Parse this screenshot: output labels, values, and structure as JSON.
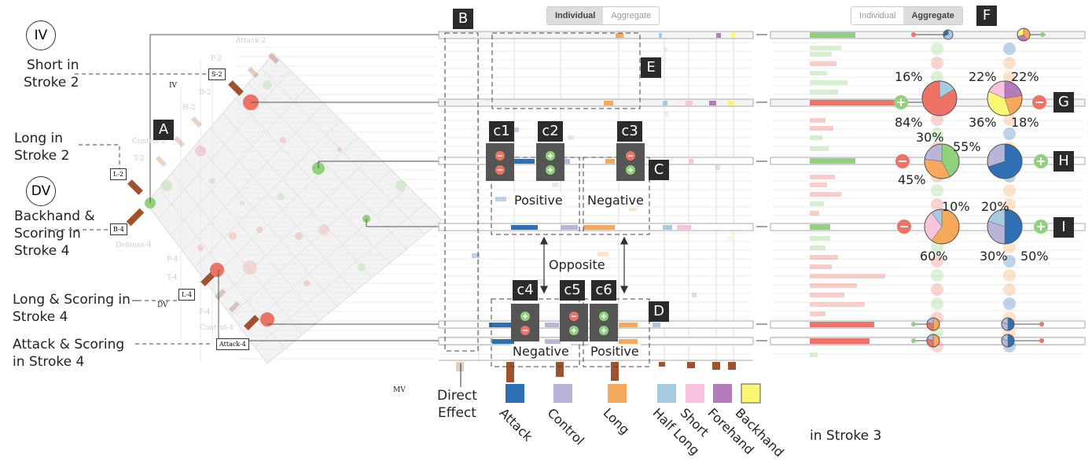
{
  "left_labels": {
    "iv_circle": "IV",
    "dv_circle": "DV",
    "short_in_stroke2": [
      "Short in",
      "Stroke 2"
    ],
    "long_in_stroke2": [
      "Long in",
      "Stroke 2"
    ],
    "backhand_scoring": [
      "Backhand &",
      "Scoring in",
      "Stroke 4"
    ],
    "long_scoring": [
      "Long & Scoring in",
      "Stroke 4"
    ],
    "attack_scoring": [
      "Attack & Scoring",
      "in Stroke 4"
    ]
  },
  "matrix": {
    "box_labels": {
      "s2": "S-2",
      "l2": "L-2",
      "b4": "B-4",
      "l4": "L-4",
      "a4": "Attack-4"
    },
    "small_labels": {
      "iv": "IV",
      "dv": "DV",
      "mv": "MV"
    },
    "faint_labels": {
      "attack2": "Attack-2",
      "p2": "P-2",
      "b2": "B-2",
      "h2": "H-2",
      "control2": "Control-2",
      "t2": "T-2",
      "defense4": "Defense-4",
      "p4": "P-4",
      "t4": "T-4",
      "f4": "F-4",
      "control4": "Control-4"
    }
  },
  "markers": {
    "A": "A",
    "B": "B",
    "C": "C",
    "D": "D",
    "E": "E",
    "F": "F",
    "G": "G",
    "H": "H",
    "I": "I",
    "c1": "c1",
    "c2": "c2",
    "c3": "c3",
    "c4": "c4",
    "c5": "c5",
    "c6": "c6"
  },
  "middle": {
    "toggle": {
      "individual": "Individual",
      "aggregate": "Aggregate",
      "active": "Individual"
    },
    "positive": "Positive",
    "negative": "Negative",
    "negative2": "Negative",
    "positive2": "Positive",
    "opposite": "Opposite",
    "direct_effect": [
      "Direct",
      "Effect"
    ],
    "axis": [
      "Attack",
      "Control",
      "Long",
      "Half Long",
      "Short",
      "Forehand",
      "Backhand"
    ]
  },
  "legend_colors": {
    "attack": "#2f6fb4",
    "control": "#b9b5d9",
    "long": "#f6a95a",
    "half_long": "#a6cbe0",
    "short": "#f8c4dd",
    "forehand": "#b57cbb",
    "backhand": "#faf774",
    "positive": "#8fd27b",
    "negative": "#ee7366",
    "dark_bar": "#a0522d"
  },
  "right": {
    "toggle": {
      "individual": "Individual",
      "aggregate": "Aggregate",
      "active": "Aggregate"
    },
    "in_stroke3": "in Stroke 3",
    "g_pcts": {
      "p16": "16%",
      "p84": "84%",
      "p22a": "22%",
      "p22b": "22%",
      "p36": "36%",
      "p18": "18%"
    },
    "h_pcts": {
      "p30": "30%",
      "p55": "55%",
      "p45": "45%"
    },
    "i_pcts": {
      "p10": "10%",
      "p60": "60%",
      "p20": "20%",
      "p30": "30%",
      "p50": "50%"
    }
  }
}
